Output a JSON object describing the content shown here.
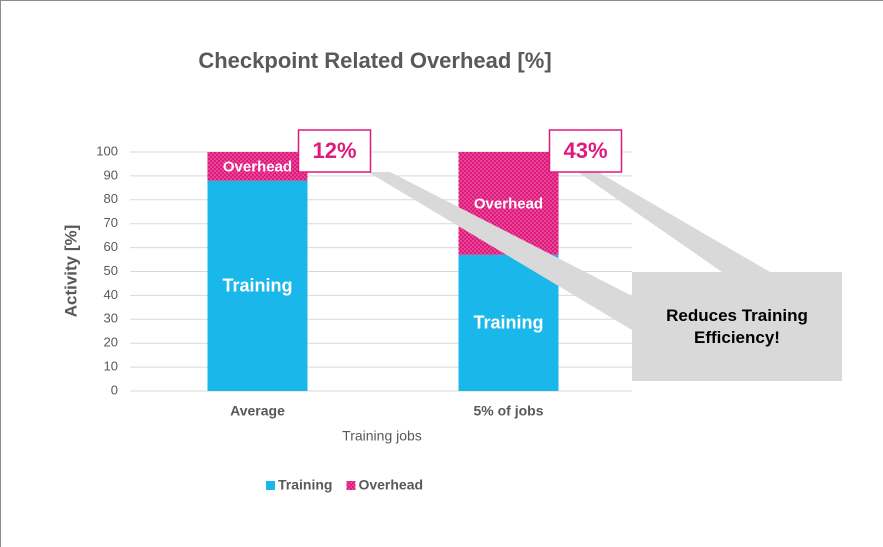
{
  "chart_data": {
    "type": "stacked_bar",
    "title": "Checkpoint Related Overhead [%]",
    "ylabel": "Activity [%]",
    "xlabel": "Training jobs",
    "categories": [
      "Average",
      "5% of jobs"
    ],
    "series": [
      {
        "name": "Training",
        "color": "#1ab8ea",
        "values": [
          88,
          57
        ]
      },
      {
        "name": "Overhead",
        "color": "#e0197d",
        "pattern": "dots",
        "values": [
          12,
          43
        ],
        "value_labels": [
          "12%",
          "43%"
        ]
      }
    ],
    "ylim": [
      0,
      100
    ],
    "yticks": [
      0,
      10,
      20,
      30,
      40,
      50,
      60,
      70,
      80,
      90,
      100
    ],
    "grid": true,
    "legend": "bottom",
    "annotation": "Reduces Training Efficiency!"
  }
}
